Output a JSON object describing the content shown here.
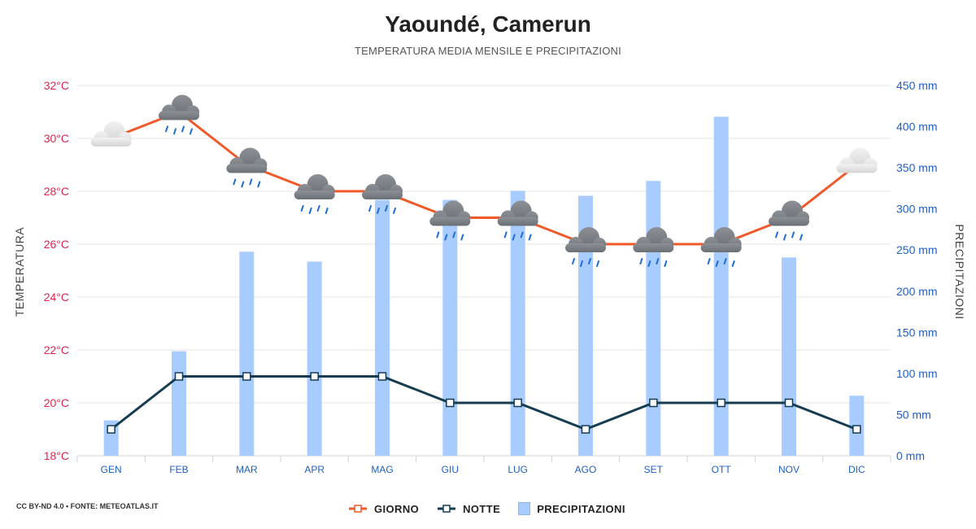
{
  "header": {
    "title": "Yaoundé, Camerun",
    "subtitle": "TEMPERATURA MEDIA MENSILE E PRECIPITAZIONI"
  },
  "footer": {
    "credit": "CC BY-ND 4.0 • FONTE: METEOATLAS.IT"
  },
  "legend": {
    "day": "GIORNO",
    "night": "NOTTE",
    "precip": "PRECIPITAZIONI"
  },
  "colors": {
    "day": "#f0592a",
    "night": "#163c52",
    "bars": "#a9ccff",
    "left_axis": "#e0234e",
    "right_axis": "#1f5fc4"
  },
  "chart_data": {
    "type": "line+bar",
    "categories": [
      "GEN",
      "FEB",
      "MAR",
      "APR",
      "MAG",
      "GIU",
      "LUG",
      "AGO",
      "SET",
      "OTT",
      "NOV",
      "DIC"
    ],
    "y_left": {
      "label": "TEMPERATURA",
      "range": [
        18,
        32
      ],
      "ticks": [
        "18°C",
        "20°C",
        "22°C",
        "24°C",
        "26°C",
        "28°C",
        "30°C",
        "32°C"
      ],
      "tick_values": [
        18,
        20,
        22,
        24,
        26,
        28,
        30,
        32
      ]
    },
    "y_right": {
      "label": "PRECIPITAZIONI",
      "range": [
        0,
        450
      ],
      "ticks": [
        "0 mm",
        "50 mm",
        "100 mm",
        "150 mm",
        "200 mm",
        "250 mm",
        "300 mm",
        "350 mm",
        "400 mm",
        "450 mm"
      ],
      "tick_values": [
        0,
        50,
        100,
        150,
        200,
        250,
        300,
        350,
        400,
        450
      ]
    },
    "series": [
      {
        "name": "GIORNO",
        "axis": "left",
        "values": [
          30,
          31,
          29,
          28,
          28,
          27,
          27,
          26,
          26,
          26,
          27,
          29
        ]
      },
      {
        "name": "NOTTE",
        "axis": "left",
        "values": [
          19,
          21,
          21,
          21,
          21,
          20,
          20,
          19,
          20,
          20,
          20,
          19
        ]
      },
      {
        "name": "PRECIPITAZIONI",
        "axis": "right",
        "values": [
          43,
          127,
          248,
          236,
          311,
          311,
          322,
          316,
          334,
          412,
          241,
          73
        ]
      }
    ],
    "weather_icons": [
      "cloud",
      "cloud-rain",
      "cloud-rain",
      "cloud-rain",
      "cloud-rain",
      "cloud-rain",
      "cloud-rain",
      "cloud-rain",
      "cloud-rain",
      "cloud-rain",
      "cloud-rain",
      "cloud"
    ],
    "grid": true,
    "legend_position": "bottom-center"
  }
}
